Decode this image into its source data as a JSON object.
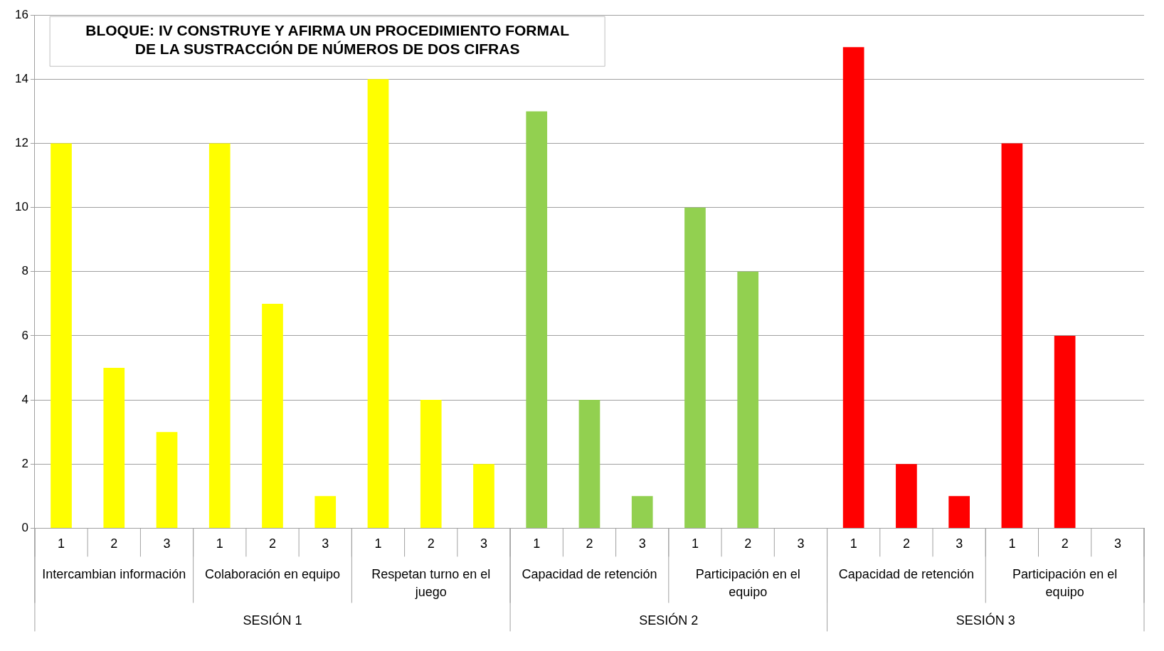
{
  "chart_data": {
    "type": "bar",
    "title": "BLOQUE: IV CONSTRUYE Y AFIRMA UN PROCEDIMIENTO FORMAL DE LA SUSTRACCIÓN DE NÚMEROS DE DOS CIFRAS",
    "categories": [
      "1",
      "2",
      "3",
      "1",
      "2",
      "3",
      "1",
      "2",
      "3",
      "1",
      "2",
      "3",
      "1",
      "2",
      "3",
      "1",
      "2",
      "3",
      "1",
      "2",
      "3"
    ],
    "values": [
      12,
      5,
      3,
      12,
      7,
      1,
      14,
      4,
      2,
      13,
      4,
      1,
      10,
      8,
      0,
      15,
      2,
      1,
      12,
      6,
      0
    ],
    "colors": [
      "#ffff00",
      "#ffff00",
      "#ffff00",
      "#ffff00",
      "#ffff00",
      "#ffff00",
      "#ffff00",
      "#ffff00",
      "#ffff00",
      "#92d050",
      "#92d050",
      "#92d050",
      "#92d050",
      "#92d050",
      "#92d050",
      "#ff0000",
      "#ff0000",
      "#ff0000",
      "#ff0000",
      "#ff0000",
      "#ff0000"
    ],
    "annotations": [
      "Intercambian información",
      "Colaboración en equipo",
      "Respetan turno en el juego",
      "Capacidad de retención",
      "Participación en el equipo",
      "Capacidad de retención",
      "Participación en el equipo",
      "SESIÓN 1",
      "SESIÓN 2",
      "SESIÓN 3"
    ],
    "ylim": [
      0,
      16
    ],
    "yticks": [
      0,
      2,
      4,
      6,
      8,
      10,
      12,
      14,
      16
    ],
    "grid": "y",
    "legend": false
  }
}
